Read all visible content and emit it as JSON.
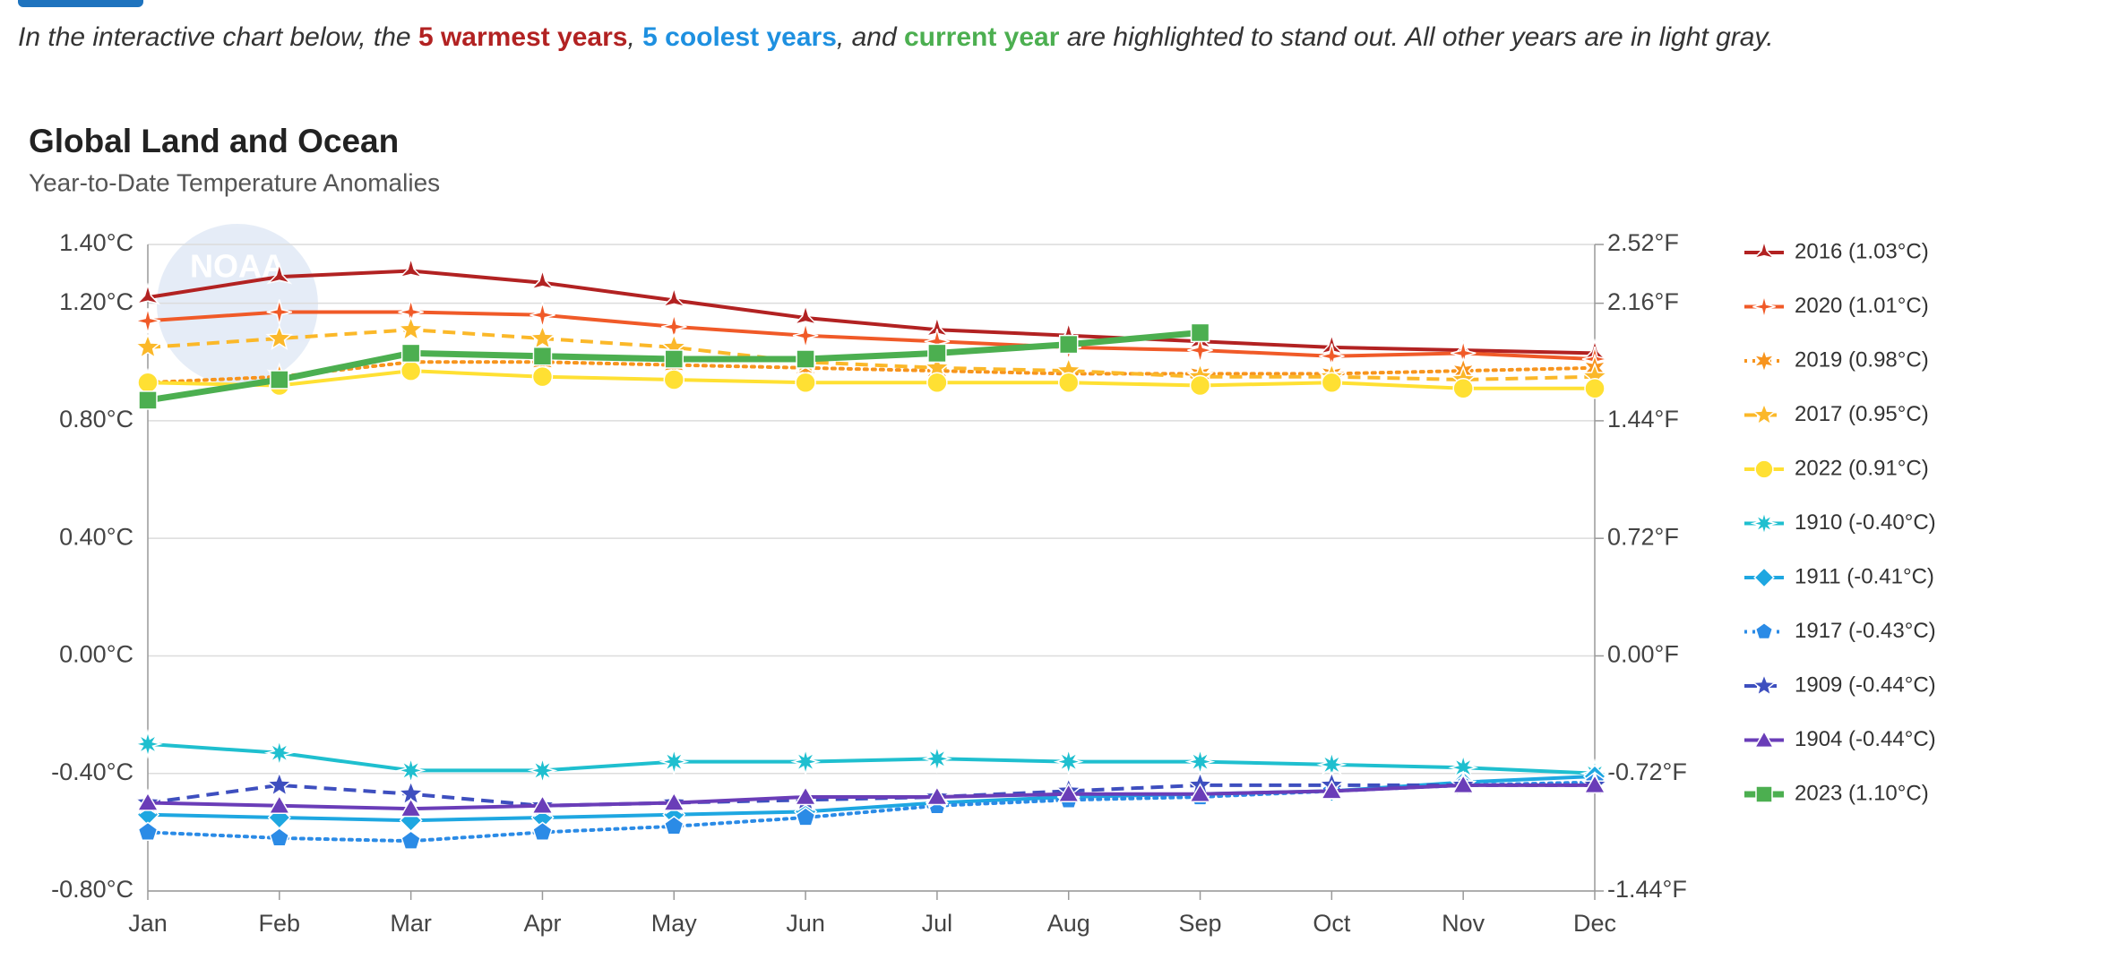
{
  "chart_data": {
    "type": "line",
    "intro": [
      {
        "text": "In the interactive chart below, the "
      },
      {
        "text": "5 warmest years",
        "color": "#b22222"
      },
      {
        "text": ", "
      },
      {
        "text": "5 coolest years",
        "color": "#1e90e0"
      },
      {
        "text": ", and "
      },
      {
        "text": "current year",
        "color": "#4caf50"
      },
      {
        "text": " are highlighted to stand out. All other years are in light gray."
      }
    ],
    "title": "Global Land and Ocean",
    "subtitle": "Year-to-Date Temperature Anomalies",
    "categories": [
      "Jan",
      "Feb",
      "Mar",
      "Apr",
      "May",
      "Jun",
      "Jul",
      "Aug",
      "Sep",
      "Oct",
      "Nov",
      "Dec"
    ],
    "ylim": [
      -0.8,
      1.4
    ],
    "yticks": [
      {
        "value": -0.8,
        "label": "-0.80°C"
      },
      {
        "value": -0.4,
        "label": "-0.40°C"
      },
      {
        "value": 0,
        "label": "0.00°C"
      },
      {
        "value": 0.4,
        "label": "0.40°C"
      },
      {
        "value": 0.8,
        "label": "0.80°C"
      },
      {
        "value": 1.2,
        "label": "1.20°C"
      },
      {
        "value": 1.4,
        "label": "1.40°C"
      }
    ],
    "y2lim": [
      -1.44,
      2.52
    ],
    "y2ticks": [
      {
        "value": -1.44,
        "label": "-1.44°F"
      },
      {
        "value": -0.72,
        "label": "-0.72°F"
      },
      {
        "value": 0,
        "label": "0.00°F"
      },
      {
        "value": 0.72,
        "label": "0.72°F"
      },
      {
        "value": 1.44,
        "label": "1.44°F"
      },
      {
        "value": 2.16,
        "label": "2.16°F"
      },
      {
        "value": 2.52,
        "label": "2.52°F"
      }
    ],
    "grid": true,
    "legend": "right",
    "series": [
      {
        "name": "2016 (1.03°C)",
        "color": "#b22222",
        "dash": "solid",
        "marker": "star3",
        "values": [
          1.22,
          1.29,
          1.31,
          1.27,
          1.21,
          1.15,
          1.11,
          1.09,
          1.07,
          1.05,
          1.04,
          1.03
        ]
      },
      {
        "name": "2020 (1.01°C)",
        "color": "#f05a28",
        "dash": "solid",
        "marker": "star4",
        "values": [
          1.14,
          1.17,
          1.17,
          1.16,
          1.12,
          1.09,
          1.07,
          1.05,
          1.04,
          1.02,
          1.03,
          1.01
        ]
      },
      {
        "name": "2019 (0.98°C)",
        "color": "#f7941d",
        "dash": "dotted",
        "marker": "star6",
        "values": [
          0.93,
          0.95,
          1.0,
          1.0,
          0.99,
          0.98,
          0.97,
          0.96,
          0.96,
          0.96,
          0.97,
          0.98
        ]
      },
      {
        "name": "2017 (0.95°C)",
        "color": "#fbb829",
        "dash": "dashed",
        "marker": "star5",
        "values": [
          1.05,
          1.08,
          1.11,
          1.08,
          1.05,
          1.0,
          0.98,
          0.97,
          0.95,
          0.95,
          0.94,
          0.95
        ]
      },
      {
        "name": "2022 (0.91°C)",
        "color": "#ffe033",
        "dash": "solid",
        "marker": "circle",
        "values": [
          0.93,
          0.92,
          0.97,
          0.95,
          0.94,
          0.93,
          0.93,
          0.93,
          0.92,
          0.93,
          0.91,
          0.91
        ]
      },
      {
        "name": "1910 (-0.40°C)",
        "color": "#1fbfcf",
        "dash": "solid",
        "marker": "star8",
        "values": [
          -0.3,
          -0.33,
          -0.39,
          -0.39,
          -0.36,
          -0.36,
          -0.35,
          -0.36,
          -0.36,
          -0.37,
          -0.38,
          -0.4
        ]
      },
      {
        "name": "1911 (-0.41°C)",
        "color": "#1ea7e1",
        "dash": "solid",
        "marker": "diamond",
        "values": [
          -0.54,
          -0.55,
          -0.56,
          -0.55,
          -0.54,
          -0.53,
          -0.5,
          -0.48,
          -0.47,
          -0.46,
          -0.43,
          -0.41
        ]
      },
      {
        "name": "1917 (-0.43°C)",
        "color": "#2b8be6",
        "dash": "dotted",
        "marker": "pentagon",
        "values": [
          -0.6,
          -0.62,
          -0.63,
          -0.6,
          -0.58,
          -0.55,
          -0.51,
          -0.49,
          -0.48,
          -0.46,
          -0.44,
          -0.43
        ]
      },
      {
        "name": "1909 (-0.44°C)",
        "color": "#3e4fbf",
        "dash": "dashed",
        "marker": "star5",
        "values": [
          -0.5,
          -0.44,
          -0.47,
          -0.51,
          -0.5,
          -0.49,
          -0.48,
          -0.46,
          -0.44,
          -0.44,
          -0.44,
          -0.44
        ]
      },
      {
        "name": "1904 (-0.44°C)",
        "color": "#6a3db8",
        "dash": "solid",
        "marker": "triangle",
        "values": [
          -0.5,
          -0.51,
          -0.52,
          -0.51,
          -0.5,
          -0.48,
          -0.48,
          -0.47,
          -0.47,
          -0.46,
          -0.44,
          -0.44
        ]
      },
      {
        "name": "2023 (1.10°C)",
        "color": "#4caf50",
        "dash": "solid",
        "marker": "square",
        "values": [
          0.87,
          0.94,
          1.03,
          1.02,
          1.01,
          1.01,
          1.03,
          1.06,
          1.1,
          null,
          null,
          null
        ]
      }
    ]
  }
}
